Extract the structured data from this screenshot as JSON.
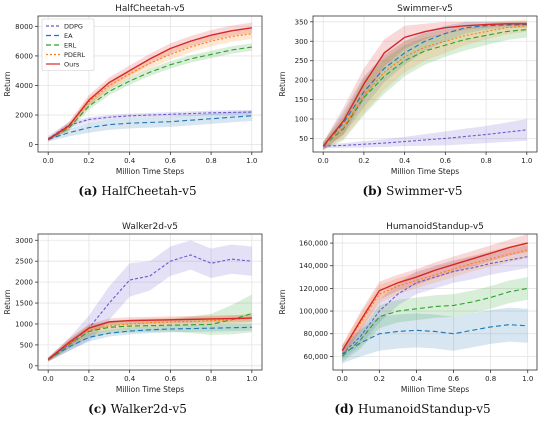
{
  "chart_data": [
    {
      "type": "line",
      "title": "HalfCheetah-v5",
      "caption_letter": "(a)",
      "caption_text": "HalfCheetah-v5",
      "xlabel": "Million Time Steps",
      "ylabel": "Return",
      "xlim": [
        -0.05,
        1.05
      ],
      "ylim": [
        -500,
        8700
      ],
      "xticks": [
        0.0,
        0.2,
        0.4,
        0.6,
        0.8,
        1.0
      ],
      "xtick_labels": [
        "0.0",
        "0.2",
        "0.4",
        "0.6",
        "0.8",
        "1.0"
      ],
      "yticks": [
        0,
        2000,
        4000,
        6000,
        8000
      ],
      "ytick_labels": [
        "0",
        "2000",
        "4000",
        "6000",
        "8000"
      ],
      "grid": true,
      "legend": "top-left",
      "x": [
        0.0,
        0.1,
        0.2,
        0.3,
        0.4,
        0.5,
        0.6,
        0.7,
        0.8,
        0.9,
        1.0
      ],
      "series": [
        {
          "name": "DDPG",
          "color": "#6a5acd",
          "dash": "3,2",
          "values": [
            400,
            1300,
            1700,
            1850,
            1950,
            2000,
            2050,
            2100,
            2150,
            2180,
            2200
          ],
          "band": [
            200,
            200,
            150,
            150,
            150,
            150,
            150,
            150,
            150,
            150,
            150
          ]
        },
        {
          "name": "EA",
          "color": "#1f77b4",
          "dash": "5,3",
          "values": [
            350,
            800,
            1150,
            1350,
            1450,
            1500,
            1550,
            1650,
            1750,
            1850,
            1950
          ],
          "band": [
            150,
            250,
            350,
            350,
            350,
            350,
            350,
            350,
            350,
            350,
            350
          ]
        },
        {
          "name": "ERL",
          "color": "#2ca02c",
          "dash": "5,3",
          "values": [
            350,
            1100,
            2600,
            3600,
            4300,
            4900,
            5400,
            5800,
            6100,
            6400,
            6600
          ],
          "band": [
            100,
            200,
            250,
            250,
            250,
            250,
            250,
            250,
            250,
            250,
            250
          ]
        },
        {
          "name": "PDERL",
          "color": "#ff7f0e",
          "dash": "2,2",
          "values": [
            350,
            1200,
            2900,
            4000,
            4800,
            5500,
            6100,
            6600,
            7000,
            7300,
            7500
          ],
          "band": [
            100,
            250,
            300,
            300,
            300,
            350,
            350,
            350,
            350,
            350,
            350
          ]
        },
        {
          "name": "Ours",
          "color": "#d62728",
          "dash": "",
          "values": [
            350,
            1250,
            3000,
            4200,
            5000,
            5800,
            6500,
            7000,
            7400,
            7700,
            7900
          ],
          "band": [
            100,
            250,
            350,
            350,
            350,
            350,
            350,
            350,
            350,
            350,
            350
          ]
        }
      ]
    },
    {
      "type": "line",
      "title": "Swimmer-v5",
      "caption_letter": "(b)",
      "caption_text": "Swimmer-v5",
      "xlabel": "Million Time Steps",
      "ylabel": "Return",
      "xlim": [
        -0.05,
        1.05
      ],
      "ylim": [
        15,
        365
      ],
      "xticks": [
        0.0,
        0.2,
        0.4,
        0.6,
        0.8,
        1.0
      ],
      "xtick_labels": [
        "0.0",
        "0.2",
        "0.4",
        "0.6",
        "0.8",
        "1.0"
      ],
      "yticks": [
        50,
        100,
        150,
        200,
        250,
        300,
        350
      ],
      "ytick_labels": [
        "50",
        "100",
        "150",
        "200",
        "250",
        "300",
        "350"
      ],
      "grid": true,
      "legend": "none",
      "x": [
        0.0,
        0.1,
        0.2,
        0.3,
        0.4,
        0.5,
        0.6,
        0.7,
        0.8,
        0.9,
        1.0
      ],
      "series": [
        {
          "name": "DDPG",
          "color": "#6a5acd",
          "dash": "3,2",
          "values": [
            30,
            32,
            35,
            38,
            42,
            46,
            50,
            55,
            60,
            66,
            72
          ],
          "band": [
            5,
            6,
            8,
            10,
            12,
            15,
            18,
            20,
            22,
            25,
            28
          ]
        },
        {
          "name": "EA",
          "color": "#1f77b4",
          "dash": "5,3",
          "values": [
            30,
            90,
            170,
            230,
            270,
            300,
            320,
            335,
            340,
            342,
            343
          ],
          "band": [
            10,
            30,
            40,
            35,
            30,
            25,
            20,
            15,
            10,
            8,
            8
          ]
        },
        {
          "name": "ERL",
          "color": "#2ca02c",
          "dash": "5,3",
          "values": [
            30,
            75,
            155,
            210,
            250,
            275,
            290,
            305,
            315,
            325,
            330
          ],
          "band": [
            10,
            30,
            45,
            45,
            40,
            35,
            30,
            28,
            25,
            22,
            20
          ]
        },
        {
          "name": "PDERL",
          "color": "#ff7f0e",
          "dash": "2,2",
          "values": [
            30,
            80,
            160,
            220,
            260,
            285,
            300,
            315,
            325,
            335,
            340
          ],
          "band": [
            10,
            30,
            45,
            45,
            40,
            35,
            30,
            25,
            20,
            18,
            15
          ]
        },
        {
          "name": "Ours",
          "color": "#d62728",
          "dash": "",
          "values": [
            30,
            95,
            190,
            270,
            310,
            325,
            335,
            340,
            343,
            345,
            345
          ],
          "band": [
            10,
            35,
            40,
            35,
            30,
            20,
            15,
            10,
            8,
            6,
            6
          ]
        }
      ]
    },
    {
      "type": "line",
      "title": "Walker2d-v5",
      "caption_letter": "(c)",
      "caption_text": "Walker2d-v5",
      "xlabel": "Million Time Steps",
      "ylabel": "Return",
      "xlim": [
        -0.05,
        1.05
      ],
      "ylim": [
        -100,
        3150
      ],
      "xticks": [
        0.0,
        0.2,
        0.4,
        0.6,
        0.8,
        1.0
      ],
      "xtick_labels": [
        "0.0",
        "0.2",
        "0.4",
        "0.6",
        "0.8",
        "1.0"
      ],
      "yticks": [
        0,
        500,
        1000,
        1500,
        2000,
        2500,
        3000
      ],
      "ytick_labels": [
        "0",
        "500",
        "1000",
        "1500",
        "2000",
        "2500",
        "3000"
      ],
      "grid": true,
      "legend": "none",
      "x": [
        0.0,
        0.1,
        0.2,
        0.3,
        0.4,
        0.5,
        0.6,
        0.7,
        0.8,
        0.9,
        1.0
      ],
      "series": [
        {
          "name": "DDPG",
          "color": "#6a5acd",
          "dash": "3,2",
          "values": [
            150,
            500,
            900,
            1500,
            2050,
            2150,
            2500,
            2650,
            2450,
            2550,
            2500
          ],
          "band": [
            50,
            150,
            300,
            400,
            400,
            350,
            350,
            350,
            350,
            350,
            350
          ]
        },
        {
          "name": "EA",
          "color": "#1f77b4",
          "dash": "5,3",
          "values": [
            150,
            450,
            680,
            780,
            830,
            860,
            880,
            890,
            900,
            910,
            920
          ],
          "band": [
            50,
            100,
            100,
            80,
            80,
            80,
            80,
            80,
            80,
            80,
            80
          ]
        },
        {
          "name": "ERL",
          "color": "#2ca02c",
          "dash": "5,3",
          "values": [
            150,
            500,
            820,
            920,
            950,
            960,
            970,
            980,
            990,
            1100,
            1250
          ],
          "band": [
            50,
            100,
            150,
            150,
            150,
            150,
            150,
            200,
            250,
            350,
            450
          ]
        },
        {
          "name": "PDERL",
          "color": "#ff7f0e",
          "dash": "2,2",
          "values": [
            150,
            520,
            850,
            950,
            1000,
            1030,
            1050,
            1060,
            1080,
            1100,
            1150
          ],
          "band": [
            50,
            100,
            120,
            100,
            100,
            100,
            100,
            100,
            100,
            100,
            100
          ]
        },
        {
          "name": "Ours",
          "color": "#d62728",
          "dash": "",
          "values": [
            150,
            550,
            900,
            1050,
            1080,
            1090,
            1100,
            1110,
            1120,
            1130,
            1140
          ],
          "band": [
            50,
            100,
            100,
            80,
            80,
            80,
            80,
            80,
            80,
            80,
            80
          ]
        }
      ]
    },
    {
      "type": "line",
      "title": "HumanoidStandup-v5",
      "caption_letter": "(d)",
      "caption_text": "HumanoidStandup-v5",
      "xlabel": "Million Time Steps",
      "ylabel": "Return",
      "xlim": [
        -0.05,
        1.05
      ],
      "ylim": [
        48000,
        168000
      ],
      "xticks": [
        0.0,
        0.2,
        0.4,
        0.6,
        0.8,
        1.0
      ],
      "xtick_labels": [
        "0.0",
        "0.2",
        "0.4",
        "0.6",
        "0.8",
        "1.0"
      ],
      "yticks": [
        60000,
        80000,
        100000,
        120000,
        140000,
        160000
      ],
      "ytick_labels": [
        "60,000",
        "80,000",
        "100,000",
        "120,000",
        "140,000",
        "160,000"
      ],
      "grid": true,
      "legend": "none",
      "x": [
        0.0,
        0.1,
        0.2,
        0.3,
        0.4,
        0.5,
        0.6,
        0.7,
        0.8,
        0.9,
        1.0
      ],
      "series": [
        {
          "name": "DDPG",
          "color": "#6a5acd",
          "dash": "3,2",
          "values": [
            62000,
            78000,
            100000,
            115000,
            125000,
            130000,
            135000,
            138000,
            142000,
            145000,
            148000
          ],
          "band": [
            5000,
            8000,
            10000,
            10000,
            10000,
            10000,
            10000,
            10000,
            10000,
            10000,
            10000
          ]
        },
        {
          "name": "EA",
          "color": "#1f77b4",
          "dash": "5,3",
          "values": [
            62000,
            72000,
            80000,
            82000,
            83000,
            82000,
            80000,
            83000,
            86000,
            88000,
            87000
          ],
          "band": [
            8000,
            12000,
            15000,
            15000,
            15000,
            15000,
            15000,
            15000,
            15000,
            15000,
            15000
          ]
        },
        {
          "name": "ERL",
          "color": "#2ca02c",
          "dash": "5,3",
          "values": [
            60000,
            75000,
            95000,
            100000,
            102000,
            104000,
            105000,
            108000,
            112000,
            117000,
            120000
          ],
          "band": [
            5000,
            8000,
            10000,
            10000,
            10000,
            10000,
            10000,
            10000,
            10000,
            10000,
            10000
          ]
        },
        {
          "name": "PDERL",
          "color": "#ff7f0e",
          "dash": "2,2",
          "values": [
            65000,
            90000,
            115000,
            122000,
            127000,
            132000,
            137000,
            142000,
            146000,
            150000,
            154000
          ],
          "band": [
            5000,
            8000,
            8000,
            7000,
            7000,
            7000,
            7000,
            7000,
            7000,
            7000,
            7000
          ]
        },
        {
          "name": "Ours",
          "color": "#d62728",
          "dash": "",
          "values": [
            65000,
            92000,
            118000,
            125000,
            130000,
            136000,
            141000,
            146000,
            151000,
            156000,
            160000
          ],
          "band": [
            5000,
            8000,
            8000,
            7000,
            7000,
            7000,
            7000,
            7000,
            7000,
            7000,
            8000
          ]
        }
      ]
    }
  ]
}
